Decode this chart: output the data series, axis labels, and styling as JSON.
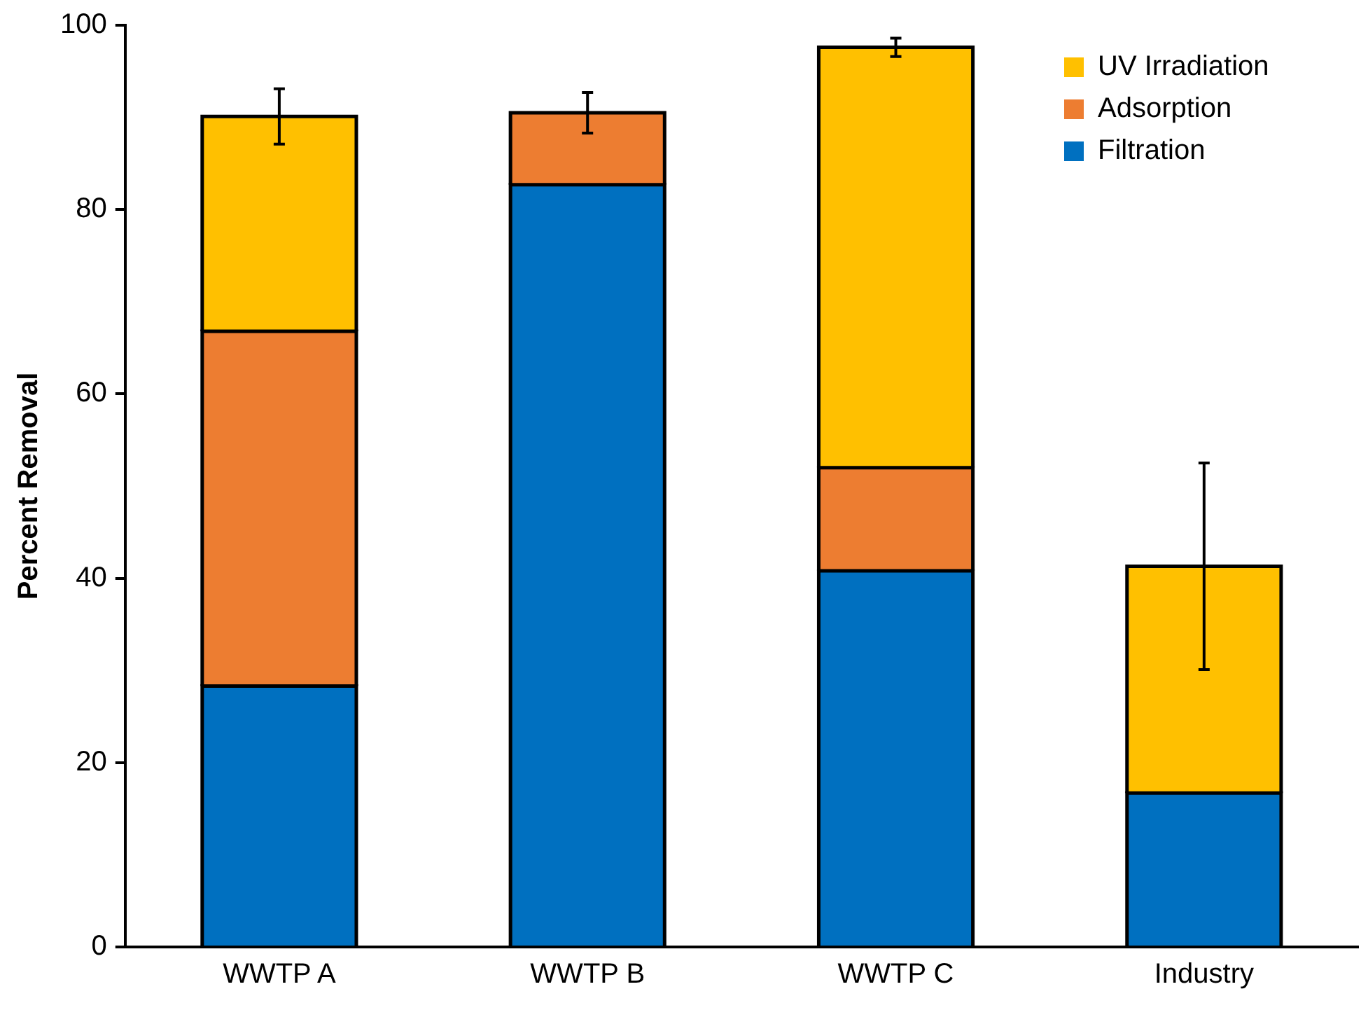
{
  "chart_data": {
    "type": "bar",
    "stacked": true,
    "ylabel": "Percent Removal",
    "categories": [
      "WWTP A",
      "WWTP B",
      "WWTP C",
      "Industry"
    ],
    "series": [
      {
        "name": "Filtration",
        "color": "#0070c0",
        "values": [
          28.3,
          82.7,
          40.8,
          16.7
        ]
      },
      {
        "name": "Adsorption",
        "color": "#ed7d31",
        "values": [
          38.5,
          7.8,
          11.2,
          0
        ]
      },
      {
        "name": "UV Irradiation",
        "color": "#ffc000",
        "values": [
          23.3,
          0,
          45.6,
          24.6
        ],
        "errors": [
          3,
          2.2,
          1,
          11.2
        ]
      }
    ],
    "ylim": [
      0,
      100
    ],
    "yticks": [
      0,
      20,
      40,
      60,
      80,
      100
    ],
    "grid": false,
    "legend": "top right"
  }
}
